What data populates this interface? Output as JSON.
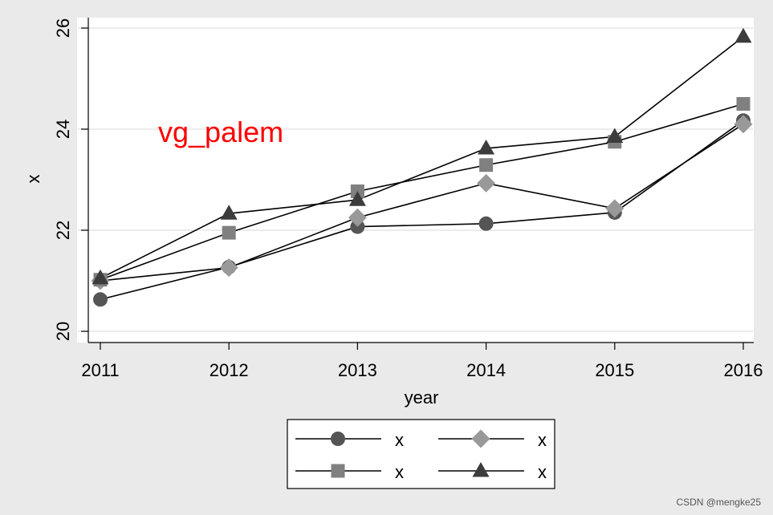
{
  "chart_data": {
    "type": "line",
    "xlabel": "year",
    "ylabel": "x",
    "x": [
      2011,
      2012,
      2013,
      2014,
      2015,
      2016
    ],
    "xlim": [
      2011,
      2016
    ],
    "ylim": [
      20,
      26
    ],
    "yticks": [
      20,
      22,
      24,
      26
    ],
    "grid": true,
    "legend_position": "bottom",
    "annotation": {
      "text": "vg_palem",
      "color": "#ff0000"
    },
    "series": [
      {
        "name": "x",
        "marker": "circle",
        "color": "#555555",
        "values": [
          20.63,
          21.27,
          22.07,
          22.13,
          22.35,
          24.17
        ]
      },
      {
        "name": "x",
        "marker": "diamond",
        "color": "#999999",
        "values": [
          21.0,
          21.26,
          22.25,
          22.93,
          22.43,
          24.1
        ]
      },
      {
        "name": "x",
        "marker": "square",
        "color": "#808080",
        "values": [
          21.02,
          21.95,
          22.77,
          23.29,
          23.75,
          24.5
        ]
      },
      {
        "name": "x",
        "marker": "triangle",
        "color": "#3c3c3c",
        "values": [
          21.05,
          22.33,
          22.6,
          23.62,
          23.85,
          25.83
        ]
      }
    ]
  },
  "watermark": "CSDN @mengke25"
}
